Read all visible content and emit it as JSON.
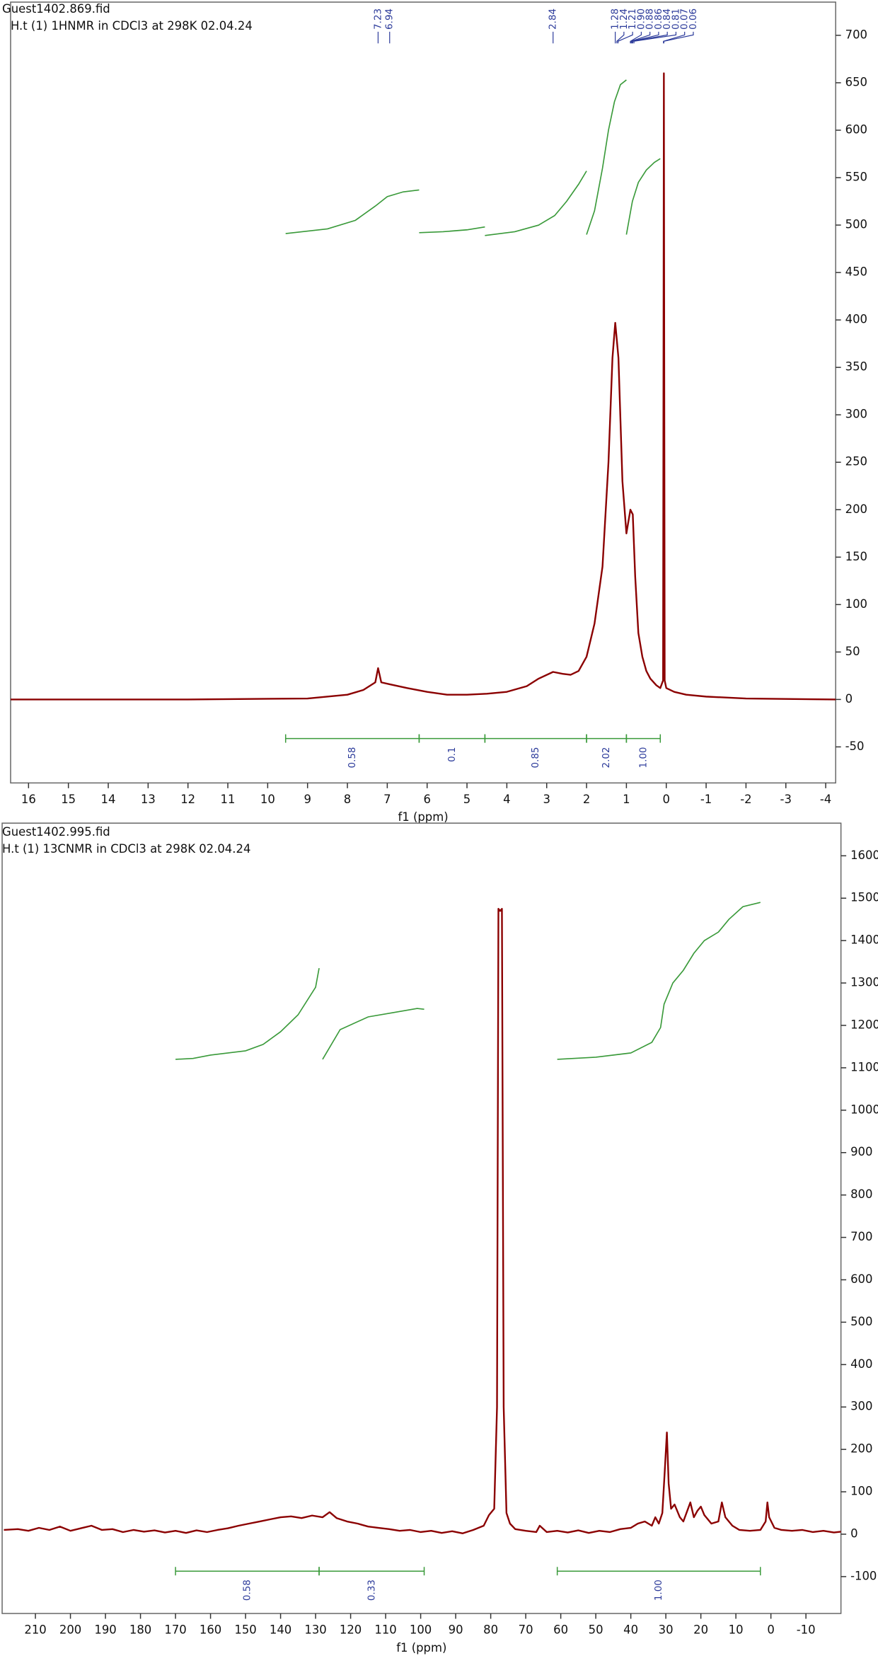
{
  "chart_data": [
    {
      "type": "line",
      "file": "Guest1402.869.fid",
      "subtitle": "H.t (1) 1HNMR in CDCl3 at 298K 02.04.24",
      "xlabel": "f1 (ppm)",
      "xlim": [
        16.45,
        -4.25
      ],
      "ylim": [
        -88,
        735
      ],
      "xticks": [
        16,
        15,
        14,
        13,
        12,
        11,
        10,
        9,
        8,
        7,
        6,
        5,
        4,
        3,
        2,
        1,
        0,
        -1,
        -2,
        -3,
        -4
      ],
      "yticks": [
        -50,
        0,
        50,
        100,
        150,
        200,
        250,
        300,
        350,
        400,
        450,
        500,
        550,
        600,
        650,
        700
      ],
      "grid": false,
      "series": [
        {
          "color": "#8b0000",
          "x": [
            16.45,
            12,
            9,
            8,
            7.6,
            7.3,
            7.23,
            7.15,
            6.94,
            6.5,
            6,
            5.5,
            5,
            4.5,
            4,
            3.5,
            3.2,
            2.84,
            2.6,
            2.4,
            2.2,
            2,
            1.8,
            1.6,
            1.45,
            1.35,
            1.28,
            1.2,
            1.1,
            1,
            0.9,
            0.84,
            0.78,
            0.7,
            0.6,
            0.5,
            0.4,
            0.25,
            0.15,
            0.08,
            0.06,
            0.04,
            0,
            -0.2,
            -0.5,
            -1,
            -2,
            -3,
            -4.25
          ],
          "values": [
            0,
            0,
            1,
            5,
            10,
            18,
            33,
            18,
            16,
            12,
            8,
            5,
            5,
            6,
            8,
            14,
            22,
            29,
            27,
            26,
            30,
            45,
            80,
            140,
            250,
            360,
            397,
            360,
            230,
            175,
            200,
            195,
            130,
            70,
            45,
            30,
            22,
            15,
            12,
            20,
            660,
            20,
            12,
            8,
            5,
            3,
            1,
            0.5,
            0
          ]
        }
      ],
      "integral_color": "#3a9a3a",
      "label_color": "#2b3a9a",
      "integrals": [
        {
          "range": [
            9.55,
            6.2
          ],
          "integral": 0.58,
          "x": [
            9.55,
            8.5,
            7.8,
            7.3,
            7,
            6.6,
            6.2
          ],
          "values": [
            491,
            496,
            505,
            520,
            530,
            535,
            537
          ]
        },
        {
          "range": [
            6.2,
            4.55
          ],
          "integral": 0.1,
          "x": [
            6.2,
            5.6,
            5,
            4.55
          ],
          "values": [
            492,
            493,
            495,
            498
          ]
        },
        {
          "range": [
            4.55,
            2
          ],
          "integral": 0.85,
          "x": [
            4.55,
            3.8,
            3.2,
            2.8,
            2.5,
            2.2,
            2
          ],
          "values": [
            489,
            493,
            500,
            510,
            525,
            543,
            557
          ]
        },
        {
          "range": [
            2,
            1
          ],
          "integral": 2.02,
          "x": [
            2,
            1.8,
            1.6,
            1.45,
            1.3,
            1.15,
            1
          ],
          "values": [
            490,
            515,
            560,
            600,
            630,
            648,
            653
          ]
        },
        {
          "range": [
            1,
            0.15
          ],
          "integral": {
            "value": 1,
            "label": "1.00"
          },
          "x": [
            1,
            0.85,
            0.7,
            0.5,
            0.3,
            0.15
          ],
          "values": [
            490,
            525,
            545,
            558,
            566,
            570
          ]
        }
      ],
      "peaks": [
        7.23,
        6.94,
        2.84,
        1.28,
        1.24,
        1.21,
        {
          "value": 0.9,
          "label": "0.90"
        },
        0.88,
        0.86,
        0.84,
        0.81,
        0.07,
        0.06
      ]
    },
    {
      "type": "line",
      "file": "Guest1402.995.fid",
      "subtitle": "H.t (1) 13CNMR in CDCl3 at 298K 02.04.24",
      "xlabel": "f1 (ppm)",
      "xlim": [
        219.5,
        -20
      ],
      "ylim": [
        -187,
        1677
      ],
      "xticks": [
        210,
        200,
        190,
        180,
        170,
        160,
        150,
        140,
        130,
        120,
        110,
        100,
        90,
        80,
        70,
        60,
        50,
        40,
        30,
        20,
        10,
        0,
        -10
      ],
      "yticks": [
        -100,
        0,
        100,
        200,
        300,
        400,
        500,
        600,
        700,
        800,
        900,
        1000,
        1100,
        1200,
        1300,
        1400,
        1500,
        1600
      ],
      "grid": false,
      "series": [
        {
          "color": "#8b0000",
          "x": [
            219,
            215,
            212,
            209,
            206,
            203,
            200,
            197,
            194,
            191,
            188,
            185,
            182,
            179,
            176,
            173,
            170,
            167,
            164,
            161,
            158,
            155,
            152,
            149,
            146,
            143,
            140,
            137,
            134,
            131,
            128,
            126,
            124,
            121,
            118,
            115,
            112,
            109,
            106,
            103,
            100,
            97,
            94,
            91,
            88,
            85,
            82,
            80.5,
            79,
            78.2,
            77.8,
            77.3,
            76.8,
            76.3,
            75.5,
            74.5,
            73,
            70,
            67,
            66,
            64,
            61,
            58,
            55,
            52,
            49,
            46,
            43,
            40,
            38,
            36,
            34,
            33,
            32,
            31,
            30.3,
            29.7,
            29.2,
            28.5,
            27.5,
            26,
            25,
            23,
            22,
            21,
            20,
            19,
            17,
            15,
            14,
            13,
            11,
            9,
            6,
            3,
            1.5,
            1,
            0.5,
            -1,
            -3,
            -6,
            -9,
            -12,
            -15,
            -18,
            -20
          ],
          "values": [
            10,
            12,
            8,
            15,
            10,
            18,
            8,
            14,
            20,
            10,
            12,
            5,
            10,
            6,
            9,
            4,
            8,
            3,
            9,
            5,
            10,
            14,
            20,
            25,
            30,
            35,
            40,
            42,
            38,
            44,
            40,
            52,
            38,
            30,
            25,
            18,
            15,
            12,
            8,
            10,
            5,
            8,
            3,
            7,
            2,
            10,
            20,
            45,
            60,
            300,
            1475,
            1470,
            1475,
            300,
            50,
            25,
            12,
            8,
            5,
            20,
            5,
            8,
            4,
            9,
            3,
            8,
            5,
            12,
            15,
            25,
            30,
            20,
            40,
            25,
            50,
            150,
            240,
            120,
            60,
            70,
            40,
            30,
            75,
            40,
            55,
            65,
            45,
            25,
            30,
            75,
            40,
            20,
            10,
            8,
            10,
            30,
            75,
            40,
            15,
            10,
            8,
            10,
            5,
            8,
            4,
            6
          ]
        }
      ],
      "integral_color": "#3a9a3a",
      "label_color": "#2b3a9a",
      "integrals": [
        {
          "range": [
            170,
            129
          ],
          "integral": 0.58,
          "x": [
            170,
            165,
            160,
            150,
            145,
            140,
            135,
            130,
            129
          ],
          "values": [
            1120,
            1122,
            1130,
            1140,
            1155,
            1185,
            1225,
            1290,
            1335
          ]
        },
        {
          "range": [
            129,
            99
          ],
          "integral": 0.33,
          "x": [
            128,
            123,
            115,
            108,
            101,
            99
          ],
          "values": [
            1120,
            1190,
            1220,
            1230,
            1240,
            1238
          ]
        },
        {
          "range": [
            61,
            3
          ],
          "integral": {
            "value": 1,
            "label": "1.00"
          },
          "x": [
            61,
            50,
            40,
            34,
            31.5,
            30.5,
            28,
            25,
            22,
            19,
            15,
            12,
            8,
            3
          ],
          "values": [
            1120,
            1125,
            1135,
            1160,
            1195,
            1250,
            1300,
            1330,
            1370,
            1400,
            1420,
            1450,
            1480,
            1490
          ]
        }
      ]
    }
  ]
}
